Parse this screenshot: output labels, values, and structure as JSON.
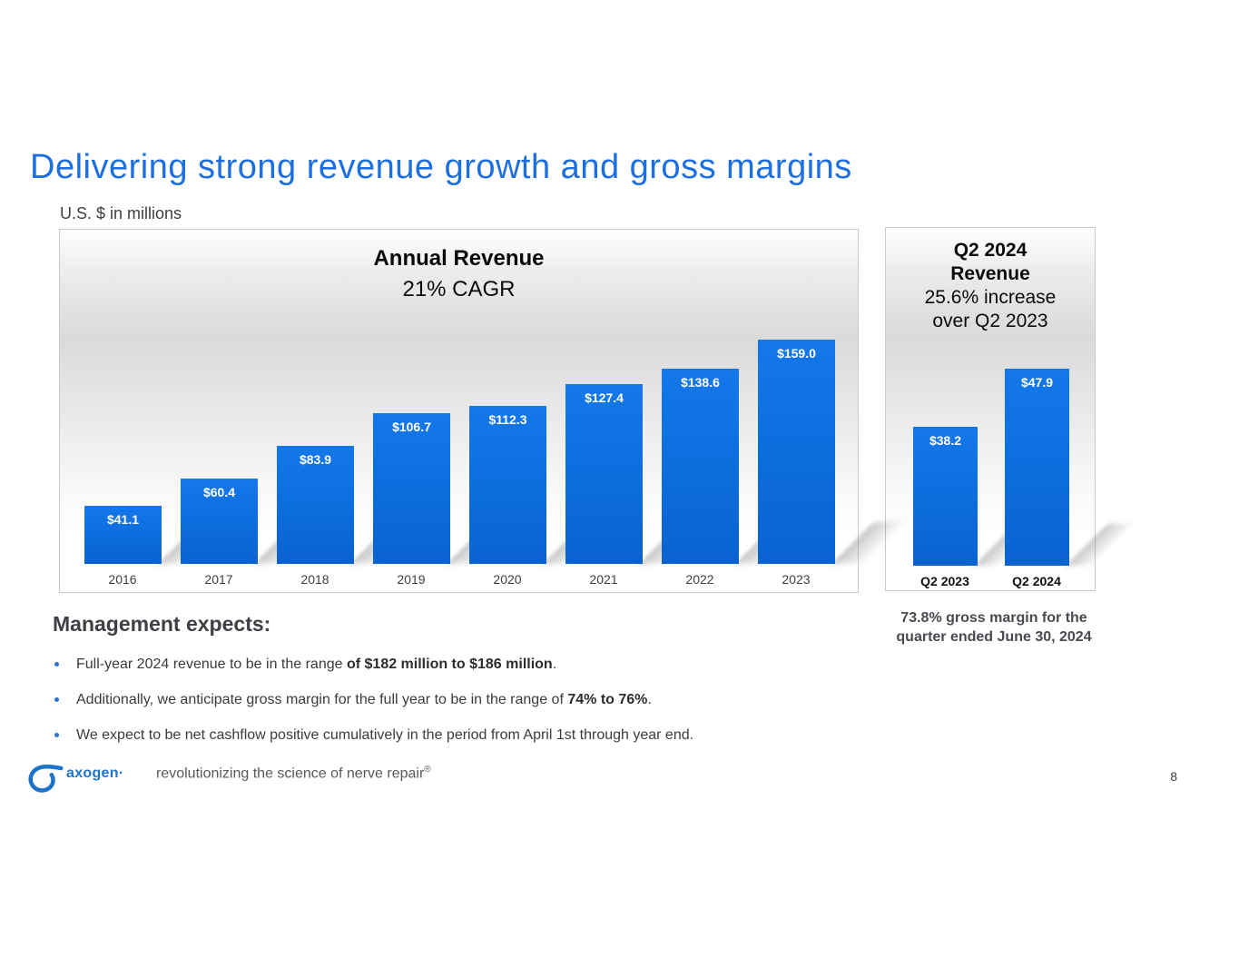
{
  "slide": {
    "title": "Delivering strong revenue growth and gross margins",
    "units_note": "U.S. $ in millions",
    "page_number": "8"
  },
  "chart_data": [
    {
      "id": "annual",
      "type": "bar",
      "title": "Annual Revenue",
      "subtitle": "21% CAGR",
      "categories": [
        "2016",
        "2017",
        "2018",
        "2019",
        "2020",
        "2021",
        "2022",
        "2023"
      ],
      "values": [
        41.1,
        60.4,
        83.9,
        106.7,
        112.3,
        127.4,
        138.6,
        159.0
      ],
      "value_labels": [
        "$41.1",
        "$60.4",
        "$83.9",
        "$106.7",
        "$112.3",
        "$127.4",
        "$138.6",
        "$159.0"
      ],
      "xlabel": "",
      "ylabel": "U.S. $ in millions",
      "ylim": [
        0,
        240
      ],
      "grid": false,
      "legend": "none",
      "bar_color": "#0d6fdf"
    },
    {
      "id": "q2",
      "type": "bar",
      "title": "Q2 2024 Revenue",
      "title_lines": [
        "Q2 2024",
        "Revenue"
      ],
      "subtitle_lines": [
        "25.6% increase",
        "over Q2 2023"
      ],
      "categories": [
        "Q2 2023",
        "Q2 2024"
      ],
      "values": [
        38.2,
        47.9
      ],
      "value_labels": [
        "$38.2",
        "$47.9"
      ],
      "xlabel": "",
      "ylabel": "U.S. $ in millions",
      "ylim": [
        15,
        52
      ],
      "grid": false,
      "legend": "none",
      "bar_color": "#0d6fdf"
    }
  ],
  "callout": {
    "line1": "73.8% gross margin for the",
    "line2": "quarter ended June 30, 2024"
  },
  "management": {
    "heading": "Management expects:",
    "bullets": [
      [
        {
          "text": "Full-year 2024 revenue to be in the range ",
          "bold": false
        },
        {
          "text": "of $182 million to $186 million",
          "bold": true
        },
        {
          "text": ".",
          "bold": false
        }
      ],
      [
        {
          "text": "Additionally, we anticipate gross margin for the full year to be in the range of ",
          "bold": false
        },
        {
          "text": "74% to 76%",
          "bold": true
        },
        {
          "text": ".",
          "bold": false
        }
      ],
      [
        {
          "text": "We expect to be net cashflow positive cumulatively in the period from April 1st through year end.",
          "bold": false
        }
      ]
    ]
  },
  "footer": {
    "brand": "axogen·",
    "tagline": "revolutionizing the science of nerve repair",
    "reg_mark": "®"
  },
  "colors": {
    "title_blue": "#1d6fdf",
    "bar_blue": "#0d6fdf",
    "logo_blue": "#1b74c8"
  }
}
